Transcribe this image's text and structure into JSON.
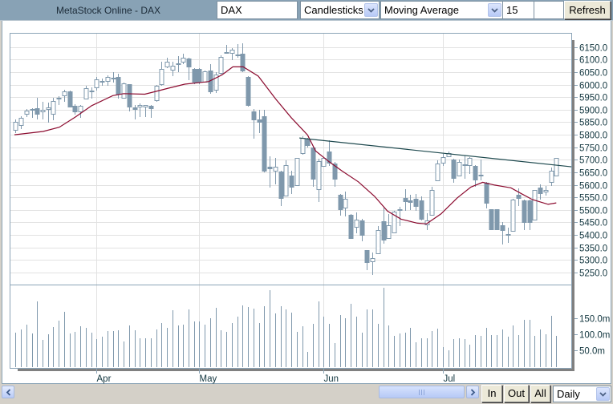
{
  "window": {
    "title": "MetaStock Online - DAX"
  },
  "toolbar": {
    "symbol_input": {
      "value": "DAX"
    },
    "chart_type_select": {
      "selected": "Candlesticks"
    },
    "indicator_select": {
      "selected": "Moving Average"
    },
    "period_input": {
      "value": "15"
    },
    "extra_input": {
      "value": ""
    },
    "refresh_label": "Refresh"
  },
  "navigation": {
    "zoom_in_label": "In",
    "zoom_out_label": "Out",
    "all_label": "All",
    "interval_select": {
      "selected": "Daily"
    }
  },
  "colors": {
    "header_bg": "#88a2b5",
    "frame": "#8ba4b7",
    "candle": "#7f98ac",
    "volume": "#7f98ac",
    "moving_average": "#8b0a2e",
    "trendline": "#1f4a4f",
    "axis_text": "#12363f",
    "grid": "#e2e2e2"
  },
  "chart_data": {
    "type": "candlestick",
    "title": "MetaStock Online - DAX",
    "symbol": "DAX",
    "interval": "Daily",
    "ylim": [
      5250,
      6150
    ],
    "y_ticks": [
      "6150.0",
      "6100.0",
      "6050.0",
      "6000.0",
      "5950.0",
      "5900.0",
      "5850.0",
      "5800.0",
      "5750.0",
      "5700.0",
      "5650.0",
      "5600.0",
      "5550.0",
      "5500.0",
      "5450.0",
      "5400.0",
      "5350.0",
      "5300.0",
      "5250.0"
    ],
    "volume_ticks": [
      {
        "label": "150.0m",
        "value": 150
      },
      {
        "label": "100.0m",
        "value": 100
      },
      {
        "label": "50.0m",
        "value": 50
      }
    ],
    "x_ticks": [
      {
        "label": "Apr",
        "index": 14.95
      },
      {
        "label": "May",
        "index": 33.97
      },
      {
        "label": "Jun",
        "index": 57.0
      },
      {
        "label": "Jul",
        "index": 79.0
      }
    ],
    "grid": true,
    "candles_ohlc": [
      [
        5820,
        5860,
        5807,
        5852
      ],
      [
        5840,
        5874,
        5824,
        5868
      ],
      [
        5884,
        5903,
        5871,
        5897
      ],
      [
        5898,
        5906,
        5866,
        5903
      ],
      [
        5905,
        5946,
        5860,
        5884
      ],
      [
        5894,
        5932,
        5860,
        5900
      ],
      [
        5902,
        5927,
        5847,
        5909
      ],
      [
        5882,
        5948,
        5858,
        5934
      ],
      [
        5947,
        5954,
        5920,
        5943
      ],
      [
        5956,
        5980,
        5932,
        5973
      ],
      [
        5973,
        5977,
        5909,
        5913
      ],
      [
        5915,
        5922,
        5881,
        5893
      ],
      [
        5894,
        5920,
        5868,
        5915
      ],
      [
        5943,
        5994,
        5940,
        5986
      ],
      [
        5973,
        5988,
        5943,
        5977
      ],
      [
        5988,
        6031,
        5977,
        6022
      ],
      [
        6012,
        6023,
        5996,
        6016
      ],
      [
        6014,
        6037,
        5994,
        6031
      ],
      [
        6023,
        6050,
        6007,
        6026
      ],
      [
        6031,
        6044,
        5945,
        5962
      ],
      [
        5948,
        6007,
        5945,
        6005
      ],
      [
        6001,
        6002,
        5894,
        5911
      ],
      [
        5909,
        5920,
        5860,
        5904
      ],
      [
        5913,
        5924,
        5871,
        5919
      ],
      [
        5913,
        5920,
        5871,
        5919
      ],
      [
        5915,
        5920,
        5866,
        5905
      ],
      [
        5937,
        5999,
        5932,
        5994
      ],
      [
        6001,
        6092,
        5996,
        6064
      ],
      [
        6071,
        6108,
        6066,
        6092
      ],
      [
        6058,
        6092,
        6034,
        6076
      ],
      [
        6081,
        6114,
        6050,
        6084
      ],
      [
        6090,
        6122,
        6082,
        6106
      ],
      [
        6103,
        6108,
        6018,
        6071
      ],
      [
        6063,
        6066,
        6002,
        6012
      ],
      [
        6063,
        6066,
        6002,
        6012
      ],
      [
        6012,
        6055,
        6007,
        6052
      ],
      [
        6055,
        6082,
        5962,
        5973
      ],
      [
        5980,
        6050,
        5967,
        6039
      ],
      [
        6048,
        6116,
        6041,
        6112
      ],
      [
        6126,
        6159,
        6122,
        6130
      ],
      [
        6128,
        6146,
        6099,
        6140
      ],
      [
        6116,
        6162,
        6108,
        6120
      ],
      [
        6122,
        6165,
        6050,
        6057
      ],
      [
        6031,
        6034,
        5913,
        5920
      ],
      [
        5894,
        5903,
        5785,
        5860
      ],
      [
        5861,
        5900,
        5807,
        5852
      ],
      [
        5874,
        5900,
        5650,
        5655
      ],
      [
        5671,
        5714,
        5588,
        5666
      ],
      [
        5655,
        5708,
        5602,
        5671
      ],
      [
        5653,
        5655,
        5516,
        5548
      ],
      [
        5556,
        5698,
        5554,
        5679
      ],
      [
        5637,
        5655,
        5564,
        5591
      ],
      [
        5600,
        5708,
        5596,
        5706
      ],
      [
        5728,
        5794,
        5719,
        5788
      ],
      [
        5785,
        5788,
        5749,
        5760
      ],
      [
        5749,
        5753,
        5593,
        5625
      ],
      [
        5583,
        5703,
        5532,
        5696
      ],
      [
        5676,
        5711,
        5671,
        5706
      ],
      [
        5732,
        5778,
        5676,
        5689
      ],
      [
        5685,
        5692,
        5591,
        5623
      ],
      [
        5561,
        5564,
        5476,
        5504
      ],
      [
        5510,
        5572,
        5474,
        5543
      ],
      [
        5479,
        5482,
        5383,
        5386
      ],
      [
        5433,
        5490,
        5408,
        5461
      ],
      [
        5458,
        5463,
        5376,
        5399
      ],
      [
        5338,
        5340,
        5260,
        5292
      ],
      [
        5296,
        5330,
        5241,
        5306
      ],
      [
        5328,
        5436,
        5324,
        5420
      ],
      [
        5455,
        5508,
        5365,
        5380
      ],
      [
        5388,
        5482,
        5386,
        5438
      ],
      [
        5410,
        5495,
        5408,
        5493
      ],
      [
        5499,
        5511,
        5436,
        5504
      ],
      [
        5546,
        5583,
        5497,
        5536
      ],
      [
        5538,
        5559,
        5500,
        5532
      ],
      [
        5543,
        5564,
        5497,
        5516
      ],
      [
        5538,
        5554,
        5458,
        5463
      ],
      [
        5442,
        5487,
        5420,
        5458
      ],
      [
        5479,
        5593,
        5477,
        5580
      ],
      [
        5618,
        5698,
        5615,
        5685
      ],
      [
        5687,
        5724,
        5674,
        5712
      ],
      [
        5714,
        5732,
        5711,
        5728
      ],
      [
        5700,
        5703,
        5607,
        5628
      ],
      [
        5636,
        5700,
        5634,
        5692
      ],
      [
        5681,
        5717,
        5625,
        5683
      ],
      [
        5679,
        5711,
        5644,
        5706
      ],
      [
        5676,
        5679,
        5593,
        5620
      ],
      [
        5639,
        5700,
        5618,
        5637
      ],
      [
        5607,
        5610,
        5506,
        5529
      ],
      [
        5503,
        5504,
        5420,
        5423
      ],
      [
        5503,
        5504,
        5420,
        5423
      ],
      [
        5439,
        5450,
        5362,
        5418
      ],
      [
        5402,
        5429,
        5367,
        5399
      ],
      [
        5415,
        5543,
        5413,
        5541
      ],
      [
        5559,
        5586,
        5514,
        5548
      ],
      [
        5538,
        5541,
        5420,
        5452
      ],
      [
        5538,
        5541,
        5420,
        5452
      ],
      [
        5460,
        5580,
        5458,
        5578
      ],
      [
        5588,
        5602,
        5540,
        5568
      ],
      [
        5572,
        5596,
        5557,
        5580
      ],
      [
        5612,
        5668,
        5596,
        5657
      ],
      [
        5638,
        5708,
        5636,
        5706
      ]
    ],
    "volume_millions": [
      105,
      115,
      130,
      102,
      202,
      82,
      100,
      122,
      142,
      170,
      102,
      107,
      125,
      120,
      105,
      85,
      92,
      110,
      110,
      112,
      77,
      127,
      112,
      87,
      87,
      87,
      115,
      135,
      120,
      175,
      127,
      130,
      177,
      140,
      140,
      130,
      150,
      182,
      112,
      107,
      135,
      155,
      190,
      185,
      180,
      135,
      187,
      237,
      165,
      187,
      177,
      167,
      107,
      125,
      45,
      132,
      202,
      155,
      132,
      72,
      160,
      150,
      195,
      155,
      105,
      177,
      177,
      132,
      245,
      127,
      95,
      102,
      105,
      120,
      75,
      87,
      87,
      110,
      117,
      60,
      50,
      85,
      87,
      85,
      67,
      97,
      95,
      120,
      97,
      97,
      115,
      92,
      127,
      97,
      145,
      145,
      95,
      115,
      100,
      157,
      95
    ],
    "moving_average": {
      "name": "Moving Average",
      "period": 15,
      "points": [
        [
          -0.2,
          5800
        ],
        [
          5.1,
          5813
        ],
        [
          8.1,
          5830
        ],
        [
          11.1,
          5871
        ],
        [
          14.1,
          5916
        ],
        [
          18,
          5956
        ],
        [
          20,
          5964
        ],
        [
          23.9,
          5962
        ],
        [
          25.4,
          5970
        ],
        [
          28.3,
          5986
        ],
        [
          31.3,
          6002
        ],
        [
          35.7,
          6012
        ],
        [
          38.2,
          6039
        ],
        [
          40.2,
          6071
        ],
        [
          42.1,
          6071
        ],
        [
          44.9,
          6034
        ],
        [
          48.1,
          5943
        ],
        [
          51,
          5868
        ],
        [
          54,
          5799
        ],
        [
          55.5,
          5735
        ],
        [
          58,
          5692
        ],
        [
          60.4,
          5655
        ],
        [
          63.4,
          5612
        ],
        [
          66.4,
          5554
        ],
        [
          68.8,
          5495
        ],
        [
          71.3,
          5463
        ],
        [
          74.3,
          5447
        ],
        [
          76,
          5444
        ],
        [
          78.7,
          5484
        ],
        [
          81.7,
          5548
        ],
        [
          84.2,
          5591
        ],
        [
          86.4,
          5610
        ],
        [
          88.6,
          5599
        ],
        [
          91.6,
          5588
        ],
        [
          93.6,
          5564
        ],
        [
          95.6,
          5541
        ],
        [
          98.5,
          5522
        ],
        [
          100,
          5528
        ]
      ]
    },
    "trendline": {
      "start": [
        52.5,
        5787
      ],
      "end": [
        102.8,
        5672
      ]
    }
  }
}
